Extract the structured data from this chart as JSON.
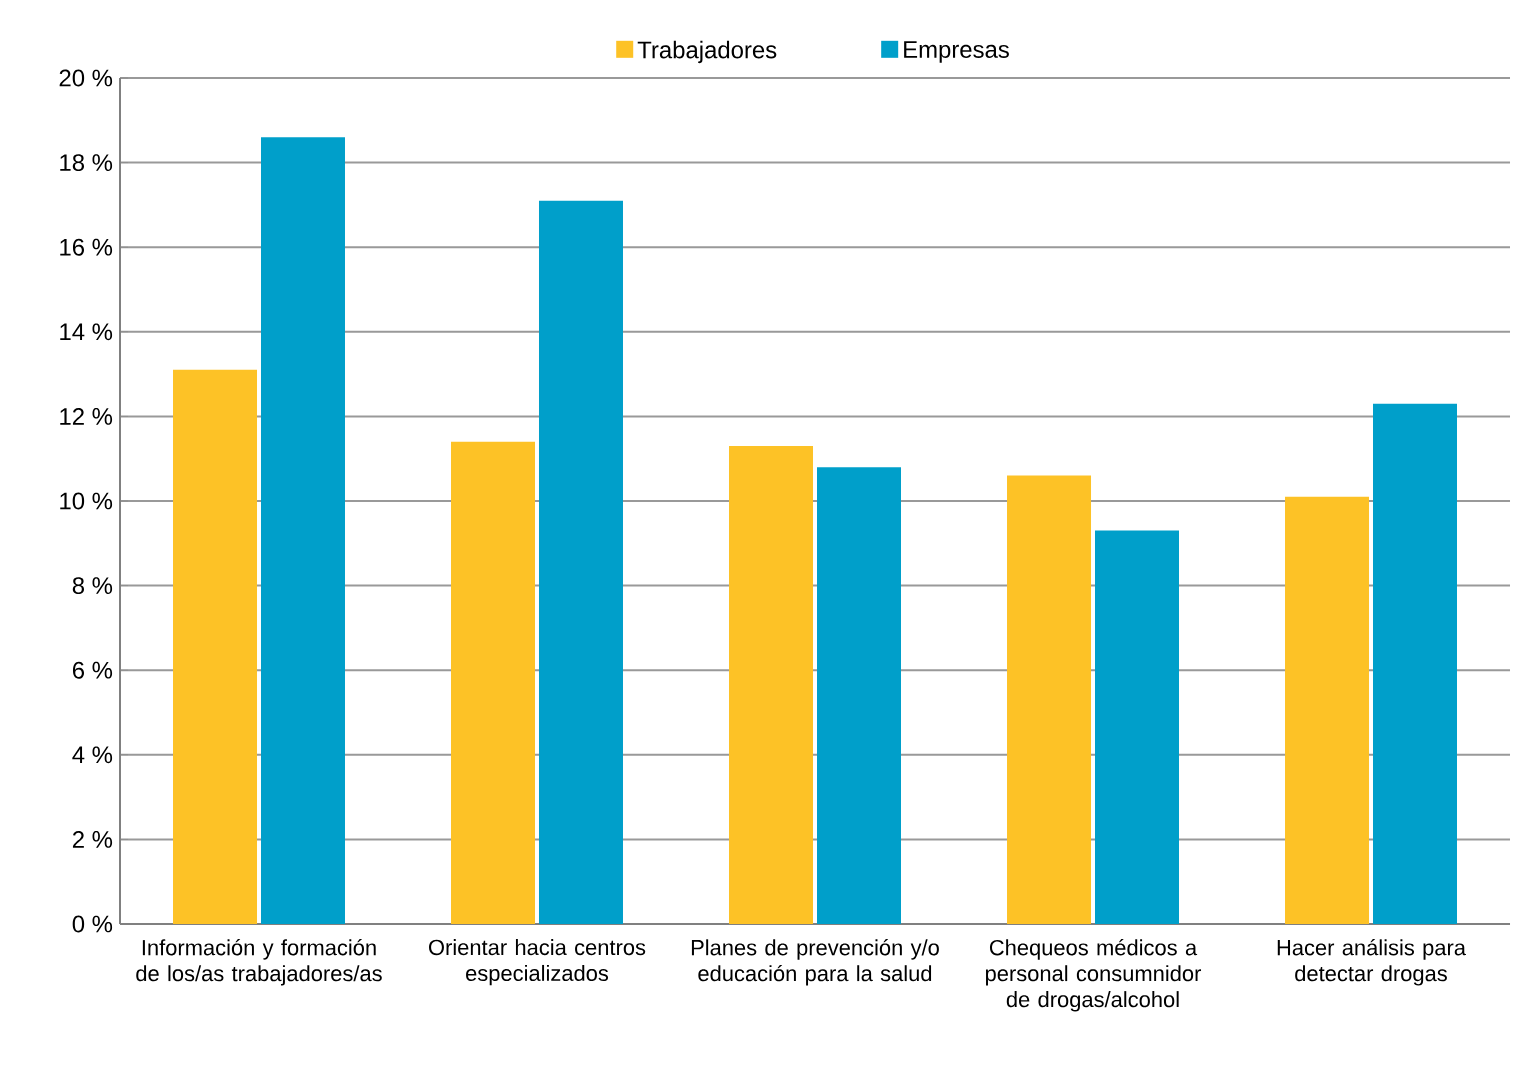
{
  "chart_data": {
    "type": "bar",
    "categories": [
      "Información y formación de los/as trabajadores/as",
      "Orientar hacia centros especializados",
      "Planes de prevención y/o educación para la salud",
      "Chequeos médicos a personal consumnidor de drogas/alcohol",
      "Hacer análisis para detectar drogas"
    ],
    "series": [
      {
        "name": "Trabajadores",
        "color": "#fdc226",
        "values": [
          13.1,
          11.4,
          11.3,
          10.6,
          10.1
        ]
      },
      {
        "name": "Empresas",
        "color": "#009fca",
        "values": [
          18.6,
          17.1,
          10.8,
          9.3,
          12.3
        ]
      }
    ],
    "ylim": [
      0,
      20
    ],
    "yticks": [
      {
        "value": 0,
        "label": "0 %"
      },
      {
        "value": 2,
        "label": "2 %"
      },
      {
        "value": 4,
        "label": "4 %"
      },
      {
        "value": 6,
        "label": "6 %"
      },
      {
        "value": 8,
        "label": "8 %"
      },
      {
        "value": 10,
        "label": "10 %"
      },
      {
        "value": 12,
        "label": "12 %"
      },
      {
        "value": 14,
        "label": "14 %"
      },
      {
        "value": 16,
        "label": "16 %"
      },
      {
        "value": 18,
        "label": "18 %"
      },
      {
        "value": 20,
        "label": "20 %"
      }
    ],
    "grid": "y",
    "legend": "top"
  }
}
